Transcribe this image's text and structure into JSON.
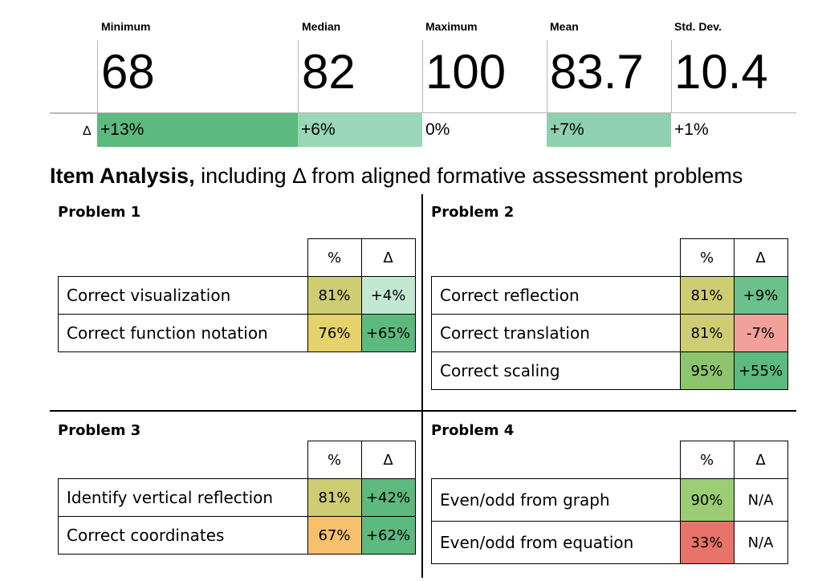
{
  "summary": {
    "stats": [
      {
        "label": "Minimum",
        "value": "68",
        "delta": "+13%",
        "color": "#5cba7f"
      },
      {
        "label": "Median",
        "value": "82",
        "delta": "+6%",
        "color": "#9ad7b6"
      },
      {
        "label": "Maximum",
        "value": "100",
        "delta": "0%",
        "color": "#ffffff"
      },
      {
        "label": "Mean",
        "value": "83.7",
        "delta": "+7%",
        "color": "#8fd0ae"
      },
      {
        "label": "Std. Dev.",
        "value": "10.4",
        "delta": "+1%",
        "color": "#ffffff"
      }
    ],
    "delta_symbol": "Δ"
  },
  "item_analysis": {
    "title_bold": "Item Analysis,",
    "title_rest": " including Δ from aligned formative assessment problems"
  },
  "headers": {
    "pct": "%",
    "delta": "Δ"
  },
  "problems": [
    {
      "title": "Problem 1",
      "rows": [
        {
          "label": "Correct visualization",
          "pct": "81%",
          "delta": "+4%",
          "pct_color": "#cfcd72",
          "delta_color": "#c3e8d2"
        },
        {
          "label": "Correct function notation",
          "pct": "76%",
          "delta": "+65%",
          "pct_color": "#e5d26a",
          "delta_color": "#5cba7f"
        }
      ]
    },
    {
      "title": "Problem 2",
      "rows": [
        {
          "label": "Correct reflection",
          "pct": "81%",
          "delta": "+9%",
          "pct_color": "#cfcd72",
          "delta_color": "#6cc08c"
        },
        {
          "label": "Correct translation",
          "pct": "81%",
          "delta": "-7%",
          "pct_color": "#cfcd72",
          "delta_color": "#f1a09b"
        },
        {
          "label": "Correct scaling",
          "pct": "95%",
          "delta": "+55%",
          "pct_color": "#8fc46f",
          "delta_color": "#5cba7f"
        }
      ]
    },
    {
      "title": "Problem 3",
      "rows": [
        {
          "label": "Identify vertical reflection",
          "pct": "81%",
          "delta": "+42%",
          "pct_color": "#cfcd72",
          "delta_color": "#5cba7f"
        },
        {
          "label": "Correct coordinates",
          "pct": "67%",
          "delta": "+62%",
          "pct_color": "#f7c06d",
          "delta_color": "#5cba7f"
        }
      ]
    },
    {
      "title": "Problem 4",
      "rows": [
        {
          "label": "Even/odd from graph",
          "pct": "90%",
          "delta": "N/A",
          "pct_color": "#9ccc74",
          "delta_color": "#ffffff"
        },
        {
          "label": "Even/odd from equation",
          "pct": "33%",
          "delta": "N/A",
          "pct_color": "#e8736b",
          "delta_color": "#ffffff"
        }
      ]
    }
  ]
}
